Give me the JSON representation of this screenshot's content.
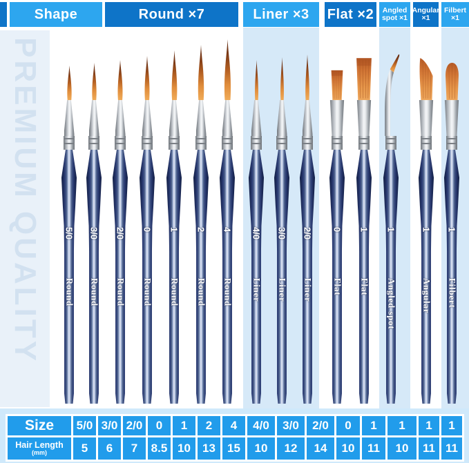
{
  "header": {
    "shape_label": "Shape",
    "groups": [
      {
        "label": "Round ×7"
      },
      {
        "label": "Liner ×3"
      },
      {
        "label": "Flat ×2"
      },
      {
        "label": "Angled spot ×1"
      },
      {
        "label": "Angular ×1"
      },
      {
        "label": "Filbert ×1"
      }
    ]
  },
  "watermark": {
    "text": "PREMIUM QUALITY"
  },
  "brushes": [
    {
      "type": "round",
      "size": "5/0",
      "shape_label": "Round",
      "hair_length_mm": "5"
    },
    {
      "type": "round",
      "size": "3/0",
      "shape_label": "Round",
      "hair_length_mm": "6"
    },
    {
      "type": "round",
      "size": "2/0",
      "shape_label": "Round",
      "hair_length_mm": "7"
    },
    {
      "type": "round",
      "size": "0",
      "shape_label": "Round",
      "hair_length_mm": "8.5"
    },
    {
      "type": "round",
      "size": "1",
      "shape_label": "Round",
      "hair_length_mm": "10"
    },
    {
      "type": "round",
      "size": "2",
      "shape_label": "Round",
      "hair_length_mm": "13"
    },
    {
      "type": "round",
      "size": "4",
      "shape_label": "Round",
      "hair_length_mm": "15"
    },
    {
      "type": "liner",
      "size": "4/0",
      "shape_label": "Liner",
      "hair_length_mm": "10"
    },
    {
      "type": "liner",
      "size": "3/0",
      "shape_label": "Liner",
      "hair_length_mm": "12"
    },
    {
      "type": "liner",
      "size": "2/0",
      "shape_label": "Liner",
      "hair_length_mm": "14"
    },
    {
      "type": "flat",
      "size": "0",
      "shape_label": "Flat",
      "hair_length_mm": "10"
    },
    {
      "type": "flat",
      "size": "1",
      "shape_label": "Flat",
      "hair_length_mm": "11"
    },
    {
      "type": "angled-spot",
      "size": "1",
      "shape_label": "Angled spot",
      "hair_length_mm": "10"
    },
    {
      "type": "angular",
      "size": "1",
      "shape_label": "Angular",
      "hair_length_mm": "11"
    },
    {
      "type": "filbert",
      "size": "1",
      "shape_label": "Filbert",
      "hair_length_mm": "11"
    }
  ],
  "table": {
    "size_label": "Size",
    "hair_label": "Hair Length",
    "hair_unit": "(mm)",
    "sizes": [
      "5/0",
      "3/0",
      "2/0",
      "0",
      "1",
      "2",
      "4",
      "4/0",
      "3/0",
      "2/0",
      "0",
      "1",
      "1",
      "1",
      "1"
    ],
    "hair_lengths_mm": [
      "5",
      "6",
      "7",
      "8.5",
      "10",
      "13",
      "15",
      "10",
      "12",
      "14",
      "10",
      "11",
      "10",
      "11",
      "11"
    ]
  },
  "colors": {
    "header_light": "#2da6ef",
    "header_dark": "#0e74c8",
    "table_cell_blue": "#219ceb",
    "table_strip_bg": "#cfe9fb",
    "group_band_bg": "#d6e9f8",
    "watermark_bg": "#e9f1f9",
    "watermark_text": "#d2e1f0",
    "handle_navy": "#1a2550",
    "bristle_orange": "#e08d3c",
    "ferrule_silver": "#c9ced4"
  }
}
